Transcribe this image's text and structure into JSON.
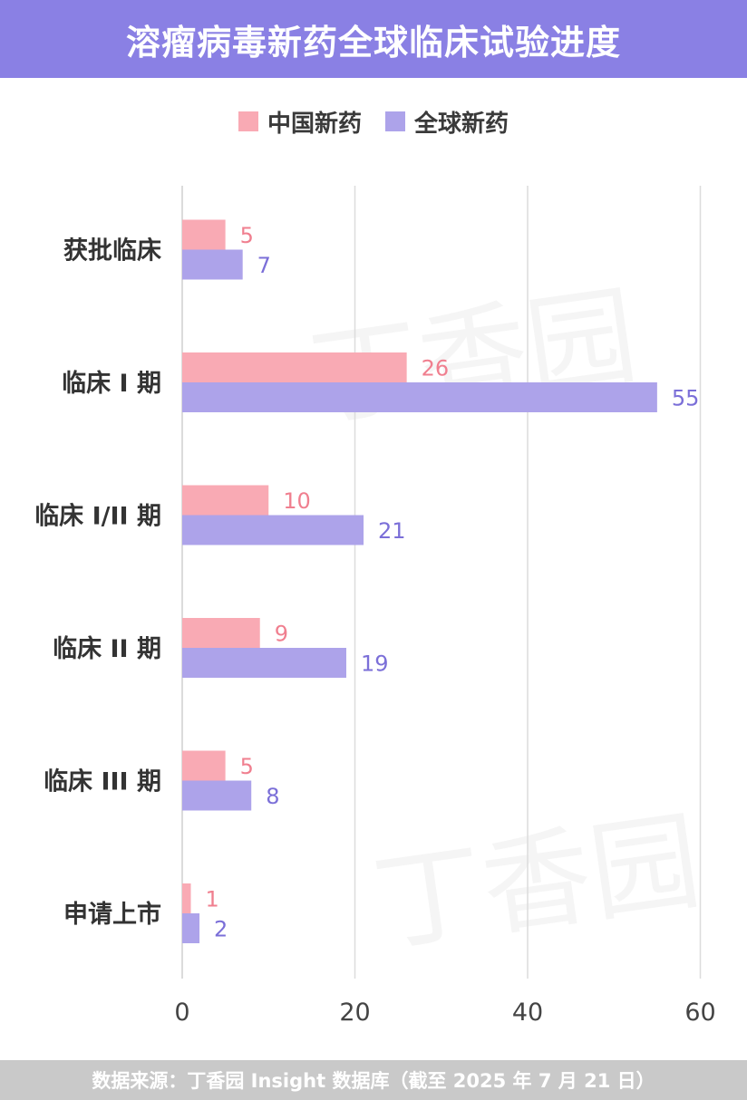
{
  "header": {
    "title": "溶瘤病毒新药全球临床试验进度"
  },
  "legend": [
    {
      "name": "中国新药",
      "color": "#f9aab4"
    },
    {
      "name": "全球新药",
      "color": "#ada3ea"
    }
  ],
  "chart_data": {
    "type": "bar",
    "orientation": "horizontal",
    "categories": [
      "获批临床",
      "临床 I 期",
      "临床 I/II 期",
      "临床 II 期",
      "临床 III 期",
      "申请上市"
    ],
    "series": [
      {
        "name": "中国新药",
        "values": [
          5,
          26,
          10,
          9,
          5,
          1
        ],
        "color": "#f9aab4",
        "label_color": "#f07f8f"
      },
      {
        "name": "全球新药",
        "values": [
          7,
          55,
          21,
          19,
          8,
          2
        ],
        "color": "#ada3ea",
        "label_color": "#7b6fd8"
      }
    ],
    "x_ticks": [
      0,
      20,
      40,
      60
    ],
    "xlim": [
      0,
      60
    ],
    "grid": true,
    "legend_position": "top-center"
  },
  "watermark": {
    "text": "丁香园"
  },
  "footer": {
    "source": "数据来源：丁香园 Insight 数据库（截至 2025 年 7 月 21 日）"
  }
}
